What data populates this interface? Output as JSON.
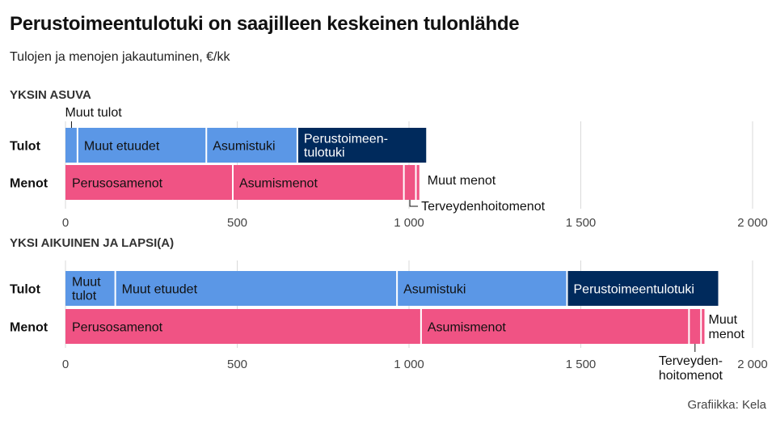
{
  "title": "Perustoimeentulotuki on saajilleen keskeinen tulonlähde",
  "subtitle": "Tulojen ja menojen jakautuminen, €/kk",
  "credit": "Grafiikka: Kela",
  "colors": {
    "etuus": "#5b97e6",
    "perustoimeentulotuki": "#002a5c",
    "menot": "#f05384",
    "grid": "#d9d9d9"
  },
  "chart_data": [
    {
      "type": "bar",
      "orientation": "horizontal",
      "stacked": true,
      "title": "YKSIN ASUVA",
      "categories": [
        "Tulot",
        "Menot"
      ],
      "xlim": [
        0,
        2000
      ],
      "ticks": [
        "0",
        "500",
        "1 000",
        "1 500",
        "2 000"
      ],
      "grid": true,
      "series": {
        "Tulot": [
          {
            "name": "Muut tulot",
            "value": 35,
            "color": "etuus",
            "label": [
              "Muut tulot"
            ],
            "label_pos": "above"
          },
          {
            "name": "Muut etuudet",
            "value": 375,
            "color": "etuus",
            "label": [
              "Muut etuudet"
            ],
            "label_pos": "inside"
          },
          {
            "name": "Asumistuki",
            "value": 265,
            "color": "etuus",
            "label": [
              "Asumistuki"
            ],
            "label_pos": "inside"
          },
          {
            "name": "Perustoimeentulotuki",
            "value": 375,
            "color": "perustoimeentulotuki",
            "label": [
              "Perustoimeen-",
              "tulotuki"
            ],
            "label_pos": "inside"
          }
        ],
        "Menot": [
          {
            "name": "Perusosamenot",
            "value": 487,
            "color": "menot",
            "label": [
              "Perusosamenot"
            ],
            "label_pos": "inside"
          },
          {
            "name": "Asumismenot",
            "value": 498,
            "color": "menot",
            "label": [
              "Asumismenot"
            ],
            "label_pos": "inside"
          },
          {
            "name": "Terveydenhoitomenot",
            "value": 35,
            "color": "menot",
            "label": [
              "Terveydenhoitomenot"
            ],
            "label_pos": "below"
          },
          {
            "name": "Muut menot",
            "value": 10,
            "color": "menot",
            "label": [
              "Muut menot"
            ],
            "label_pos": "right"
          }
        ]
      }
    },
    {
      "type": "bar",
      "orientation": "horizontal",
      "stacked": true,
      "title": "YKSI AIKUINEN JA LAPSI(A)",
      "categories": [
        "Tulot",
        "Menot"
      ],
      "xlim": [
        0,
        2000
      ],
      "ticks": [
        "0",
        "500",
        "1 000",
        "1 500",
        "2 000"
      ],
      "grid": true,
      "series": {
        "Tulot": [
          {
            "name": "Muut tulot",
            "value": 145,
            "color": "etuus",
            "label": [
              "Muut",
              "tulot"
            ],
            "label_pos": "inside"
          },
          {
            "name": "Muut etuudet",
            "value": 820,
            "color": "etuus",
            "label": [
              "Muut etuudet"
            ],
            "label_pos": "inside"
          },
          {
            "name": "Asumistuki",
            "value": 495,
            "color": "etuus",
            "label": [
              "Asumistuki"
            ],
            "label_pos": "inside"
          },
          {
            "name": "Perustoimeentulotuki",
            "value": 440,
            "color": "perustoimeentulotuki",
            "label": [
              "Perustoimeentulotuki"
            ],
            "label_pos": "inside"
          }
        ],
        "Menot": [
          {
            "name": "Perusosamenot",
            "value": 1035,
            "color": "menot",
            "label": [
              "Perusosamenot"
            ],
            "label_pos": "inside"
          },
          {
            "name": "Asumismenot",
            "value": 780,
            "color": "menot",
            "label": [
              "Asumismenot"
            ],
            "label_pos": "inside"
          },
          {
            "name": "Terveydenhoitomenot",
            "value": 35,
            "color": "menot",
            "label": [
              "Terveyden-",
              "hoitomenot"
            ],
            "label_pos": "below"
          },
          {
            "name": "Muut menot",
            "value": 10,
            "color": "menot",
            "label": [
              "Muut",
              "menot"
            ],
            "label_pos": "right"
          }
        ]
      }
    }
  ]
}
